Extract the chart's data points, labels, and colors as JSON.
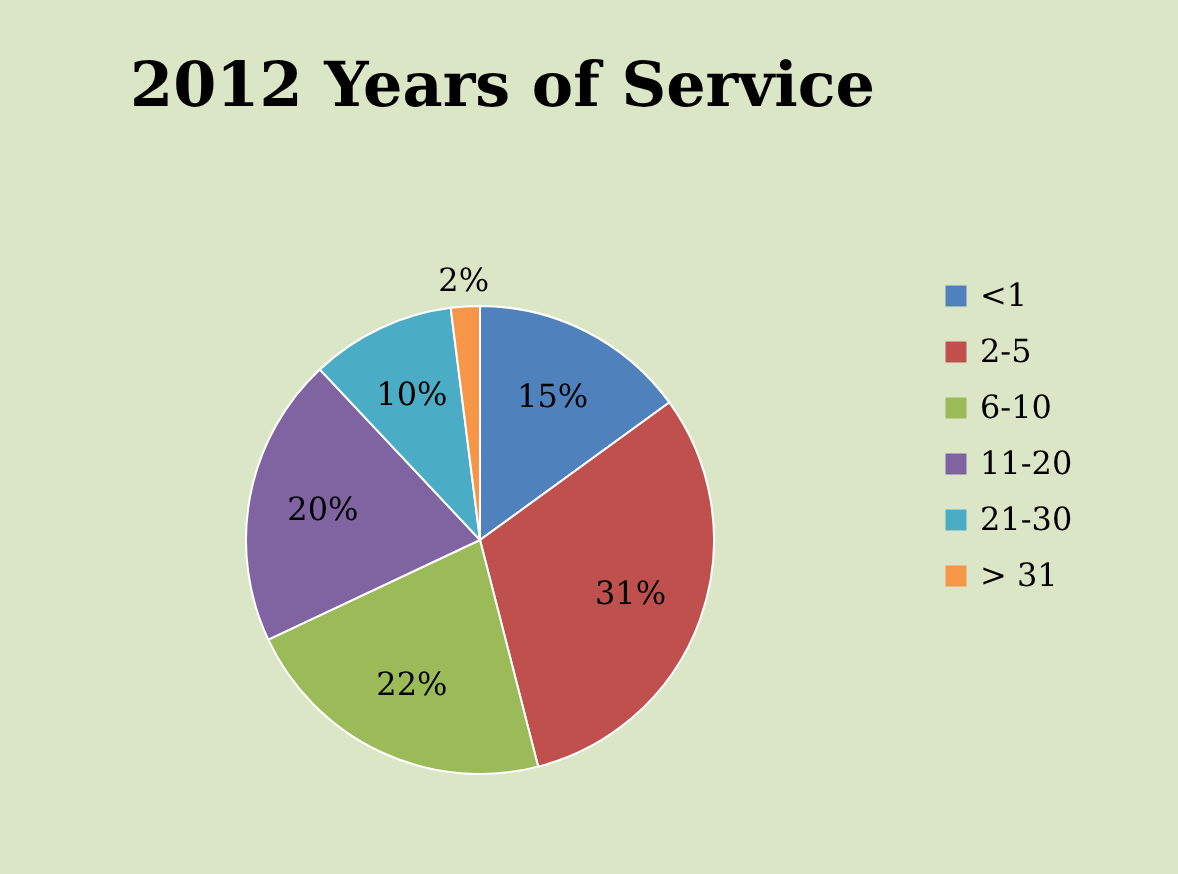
{
  "chart_data": {
    "type": "pie",
    "title": "2012 Years of Service",
    "categories": [
      "<1",
      "2-5",
      "6-10",
      "11-20",
      "21-30",
      "> 31"
    ],
    "values": [
      15,
      31,
      22,
      20,
      10,
      2
    ],
    "colors": [
      "#4f81bd",
      "#c0504d",
      "#9bbb59",
      "#8064a2",
      "#4bacc6",
      "#f79646"
    ],
    "value_labels": [
      "15%",
      "31%",
      "22%",
      "20%",
      "10%",
      "2%"
    ],
    "legend": "right"
  }
}
